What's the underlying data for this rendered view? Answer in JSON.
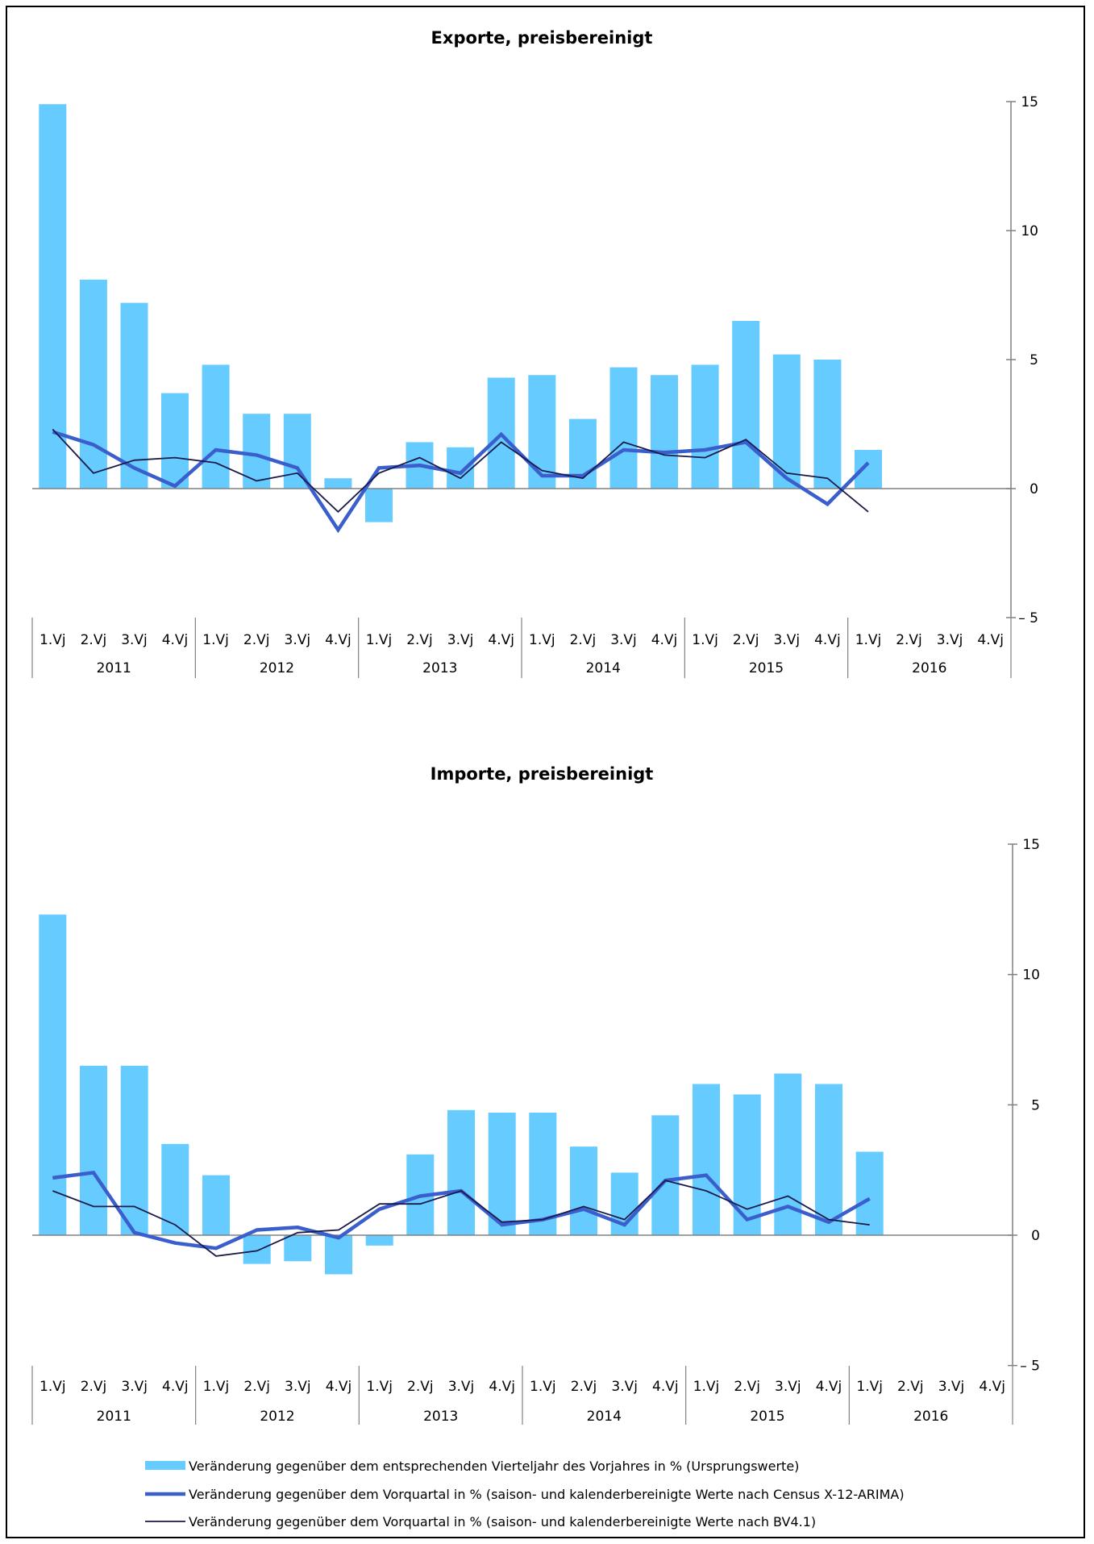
{
  "colors": {
    "bars": "#66ccff",
    "thick_line": "#3a5fcd",
    "thin_line": "#1a1a4a",
    "axis": "#808080"
  },
  "legend": [
    {
      "label": "Veränderung gegenüber dem entsprechenden Vierteljahr des Vorjahres in % (Ursprungswerte)",
      "style": "bar"
    },
    {
      "label": "Veränderung gegenüber dem Vorquartal in % (saison- und kalenderbereinigte Werte nach Census X-12-ARIMA)",
      "style": "thick-line"
    },
    {
      "label": "Veränderung gegenüber dem Vorquartal in % (saison- und kalenderbereinigte Werte nach BV4.1)",
      "style": "thin-line"
    }
  ],
  "chart_data": [
    {
      "type": "bar",
      "title": "Exporte, preisbereinigt",
      "quarters": [
        "1.Vj",
        "2.Vj",
        "3.Vj",
        "4.Vj"
      ],
      "years": [
        "2011",
        "2012",
        "2013",
        "2014",
        "2015",
        "2016"
      ],
      "y_ticks": [
        "15",
        "10",
        "5",
        "0",
        "– 5"
      ],
      "y_tick_values": [
        15,
        10,
        5,
        0,
        -5
      ],
      "ylim": [
        -5,
        15
      ],
      "y_axis_side": "right",
      "series": [
        {
          "style": "bar",
          "values": [
            14.9,
            8.1,
            7.2,
            3.7,
            4.8,
            2.9,
            2.9,
            0.4,
            -1.3,
            1.8,
            1.6,
            4.3,
            4.4,
            2.7,
            4.7,
            4.4,
            4.8,
            6.5,
            5.2,
            5.0,
            1.5
          ]
        },
        {
          "style": "thick-line",
          "values": [
            2.2,
            1.7,
            0.8,
            0.1,
            1.5,
            1.3,
            0.8,
            -1.6,
            0.8,
            0.9,
            0.6,
            2.1,
            0.5,
            0.5,
            1.5,
            1.4,
            1.5,
            1.8,
            0.4,
            -0.6,
            1.0
          ]
        },
        {
          "style": "thin-line",
          "values": [
            2.3,
            0.6,
            1.1,
            1.2,
            1.0,
            0.3,
            0.6,
            -0.9,
            0.6,
            1.2,
            0.4,
            1.8,
            0.7,
            0.4,
            1.8,
            1.3,
            1.2,
            1.9,
            0.6,
            0.4,
            -0.9
          ]
        }
      ]
    },
    {
      "type": "bar",
      "title": "Importe, preisbereinigt",
      "quarters": [
        "1.Vj",
        "2.Vj",
        "3.Vj",
        "4.Vj"
      ],
      "years": [
        "2011",
        "2012",
        "2013",
        "2014",
        "2015",
        "2016"
      ],
      "y_ticks": [
        "15",
        "10",
        "5",
        "0",
        "– 5"
      ],
      "y_tick_values": [
        15,
        10,
        5,
        0,
        -5
      ],
      "ylim": [
        -5,
        15
      ],
      "y_axis_side": "right",
      "series": [
        {
          "style": "bar",
          "values": [
            12.3,
            6.5,
            6.5,
            3.5,
            2.3,
            -1.1,
            -1.0,
            -1.5,
            -0.4,
            3.1,
            4.8,
            4.7,
            4.7,
            3.4,
            2.4,
            4.6,
            5.8,
            5.4,
            6.2,
            5.8,
            3.2
          ]
        },
        {
          "style": "thick-line",
          "values": [
            2.2,
            2.4,
            0.1,
            -0.3,
            -0.5,
            0.2,
            0.3,
            -0.1,
            1.0,
            1.5,
            1.7,
            0.4,
            0.6,
            1.0,
            0.4,
            2.1,
            2.3,
            0.6,
            1.1,
            0.5,
            1.4
          ]
        },
        {
          "style": "thin-line",
          "values": [
            1.7,
            1.1,
            1.1,
            0.4,
            -0.8,
            -0.6,
            0.1,
            0.2,
            1.2,
            1.2,
            1.7,
            0.5,
            0.6,
            1.1,
            0.6,
            2.1,
            1.7,
            1.0,
            1.5,
            0.6,
            0.4
          ]
        }
      ]
    }
  ]
}
